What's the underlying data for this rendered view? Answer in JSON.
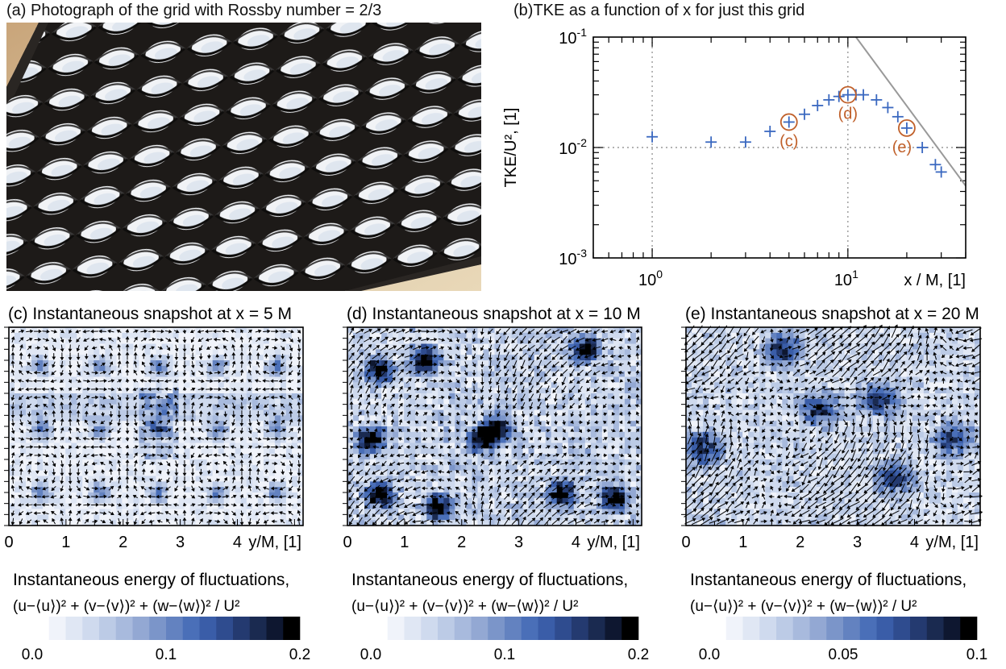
{
  "panel_a": {
    "title": "(a) Photograph of the grid with Rossby number = 2/3"
  },
  "panel_b": {
    "title": "(b)TKE as a function of x for just this grid"
  },
  "chart_data": [
    {
      "type": "scatter",
      "title": "(b)TKE as a function of x for just this grid",
      "xlabel": "x / M, [1]",
      "ylabel": "TKE/U², [1]",
      "xscale": "log",
      "yscale": "log",
      "xlim": [
        0.5,
        40
      ],
      "ylim": [
        0.001,
        0.1
      ],
      "xticklabels": [
        "10⁰",
        "10¹"
      ],
      "yticklabels": [
        "10⁻¹",
        "10⁻²",
        "10⁻³"
      ],
      "grid": "dotted at x=1, x=10, y=0.01",
      "x": [
        1,
        2,
        3,
        4,
        5,
        6,
        7,
        8,
        9,
        10,
        11,
        12,
        14,
        16,
        18,
        20,
        24,
        28,
        30
      ],
      "y": [
        0.0125,
        0.0112,
        0.0112,
        0.014,
        0.017,
        0.02,
        0.024,
        0.027,
        0.029,
        0.03,
        0.03,
        0.03,
        0.027,
        0.023,
        0.019,
        0.015,
        0.01,
        0.007,
        0.006
      ],
      "marker_color": "#3a68c0",
      "highlighted": [
        {
          "label": "(c)",
          "x": 5,
          "y": 0.017
        },
        {
          "label": "(d)",
          "x": 10,
          "y": 0.03
        },
        {
          "label": "(e)",
          "x": 20,
          "y": 0.015
        }
      ],
      "highlight_color": "#c0602a",
      "fit_line": {
        "x": [
          11,
          40
        ],
        "y": [
          0.1,
          0.0045
        ],
        "color": "#999999"
      }
    },
    {
      "type": "heatmap",
      "title": "(c)  Instantaneous snapshot at x = 5 M",
      "xlabel": "y/M, [1]",
      "xticklabels": [
        "0",
        "1",
        "2",
        "3",
        "4"
      ],
      "colorbar_label_line1": "Instantaneous energy of fluctuations,",
      "colorbar_label_line2": "(u−⟨u⟩)² + (v−⟨v⟩)² + (w−⟨w⟩)² / U²",
      "colorbar_range": [
        0.0,
        0.2
      ],
      "colorbar_ticks": [
        "0.0",
        "0.1",
        "0.2"
      ]
    },
    {
      "type": "heatmap",
      "title": "(d)  Instantaneous snapshot at x = 10 M",
      "xlabel": "y/M, [1]",
      "xticklabels": [
        "0",
        "1",
        "2",
        "3",
        "4"
      ],
      "colorbar_label_line1": "Instantaneous energy of fluctuations,",
      "colorbar_label_line2": "(u−⟨u⟩)² + (v−⟨v⟩)² + (w−⟨w⟩)² / U²",
      "colorbar_range": [
        0.0,
        0.2
      ],
      "colorbar_ticks": [
        "0.0",
        "0.1",
        "0.2"
      ]
    },
    {
      "type": "heatmap",
      "title": "(e)  Instantaneous snapshot at x = 20 M",
      "xlabel": "y/M, [1]",
      "xticklabels": [
        "0",
        "1",
        "2",
        "3",
        "4"
      ],
      "colorbar_label_line1": "Instantaneous energy of fluctuations,",
      "colorbar_label_line2": "(u−⟨u⟩)² + (v−⟨v⟩)² + (w−⟨w⟩)² / U²",
      "colorbar_range": [
        0.0,
        0.1
      ],
      "colorbar_ticks": [
        "0.0",
        "0.05",
        "0.1"
      ]
    }
  ],
  "colormap": [
    "#ffffff",
    "#f0f3fa",
    "#e0e7f4",
    "#cfdaee",
    "#bccbe6",
    "#a8badd",
    "#93a8d3",
    "#7b95c9",
    "#6382c0",
    "#4a6fb8",
    "#3a5da8",
    "#2f4c8f",
    "#243a70",
    "#1a2a50",
    "#0e1730",
    "#000000"
  ]
}
